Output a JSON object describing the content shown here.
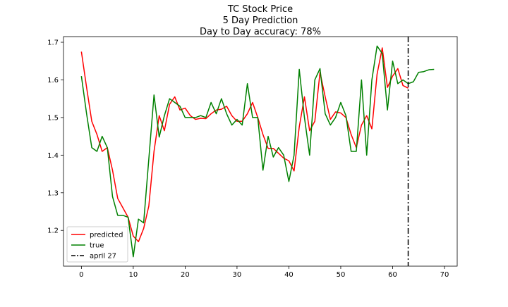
{
  "chart_data": {
    "type": "line",
    "title_lines": [
      "TC Stock Price",
      "5 Day Prediction",
      "Day to Day accuracy: 78%"
    ],
    "xlim": [
      -3.45,
      72.45
    ],
    "ylim": [
      1.105,
      1.715
    ],
    "x_ticks": [
      0,
      10,
      20,
      30,
      40,
      50,
      60,
      70
    ],
    "y_ticks": [
      1.2,
      1.3,
      1.4,
      1.5,
      1.6,
      1.7
    ],
    "grid": false,
    "legend_position": "lower-left",
    "series": [
      {
        "name": "predicted",
        "color": "#ff0000",
        "x": [
          0,
          1,
          2,
          3,
          4,
          5,
          6,
          7,
          8,
          9,
          10,
          11,
          12,
          13,
          14,
          15,
          16,
          17,
          18,
          19,
          20,
          21,
          22,
          23,
          24,
          25,
          26,
          27,
          28,
          29,
          30,
          31,
          32,
          33,
          34,
          35,
          36,
          37,
          38,
          39,
          40,
          41,
          42,
          43,
          44,
          45,
          46,
          47,
          48,
          49,
          50,
          51,
          52,
          53,
          54,
          55,
          56,
          57,
          58,
          59,
          60,
          61,
          62,
          63
        ],
        "values": [
          1.675,
          1.58,
          1.49,
          1.455,
          1.41,
          1.42,
          1.36,
          1.285,
          1.26,
          1.235,
          1.185,
          1.17,
          1.205,
          1.265,
          1.41,
          1.505,
          1.465,
          1.535,
          1.555,
          1.52,
          1.525,
          1.505,
          1.495,
          1.498,
          1.497,
          1.51,
          1.52,
          1.522,
          1.53,
          1.505,
          1.49,
          1.49,
          1.51,
          1.54,
          1.5,
          1.455,
          1.418,
          1.418,
          1.405,
          1.392,
          1.385,
          1.358,
          1.475,
          1.555,
          1.465,
          1.49,
          1.62,
          1.555,
          1.495,
          1.515,
          1.512,
          1.5,
          1.455,
          1.42,
          1.48,
          1.505,
          1.47,
          1.615,
          1.685,
          1.58,
          1.61,
          1.63,
          1.585,
          1.578
        ]
      },
      {
        "name": "true",
        "color": "#008000",
        "x": [
          0,
          1,
          2,
          3,
          4,
          5,
          6,
          7,
          8,
          9,
          10,
          11,
          12,
          13,
          14,
          15,
          16,
          17,
          18,
          19,
          20,
          21,
          22,
          23,
          24,
          25,
          26,
          27,
          28,
          29,
          30,
          31,
          32,
          33,
          34,
          35,
          36,
          37,
          38,
          39,
          40,
          41,
          42,
          43,
          44,
          45,
          46,
          47,
          48,
          49,
          50,
          51,
          52,
          53,
          54,
          55,
          56,
          57,
          58,
          59,
          60,
          61,
          62,
          63,
          64,
          65,
          66,
          67,
          68
        ],
        "values": [
          1.61,
          1.51,
          1.42,
          1.41,
          1.45,
          1.42,
          1.29,
          1.24,
          1.24,
          1.235,
          1.13,
          1.23,
          1.22,
          1.39,
          1.56,
          1.448,
          1.505,
          1.55,
          1.54,
          1.53,
          1.5,
          1.5,
          1.5,
          1.505,
          1.5,
          1.54,
          1.51,
          1.55,
          1.51,
          1.48,
          1.495,
          1.48,
          1.59,
          1.5,
          1.5,
          1.36,
          1.45,
          1.395,
          1.42,
          1.4,
          1.33,
          1.4,
          1.628,
          1.5,
          1.4,
          1.6,
          1.63,
          1.51,
          1.48,
          1.5,
          1.54,
          1.505,
          1.41,
          1.41,
          1.6,
          1.4,
          1.6,
          1.69,
          1.67,
          1.52,
          1.65,
          1.59,
          1.6,
          1.59,
          1.595,
          1.62,
          1.622,
          1.627,
          1.628
        ]
      }
    ],
    "vline": {
      "name": "april 27",
      "x": 63,
      "color": "#000000",
      "style": "dashdot"
    }
  }
}
